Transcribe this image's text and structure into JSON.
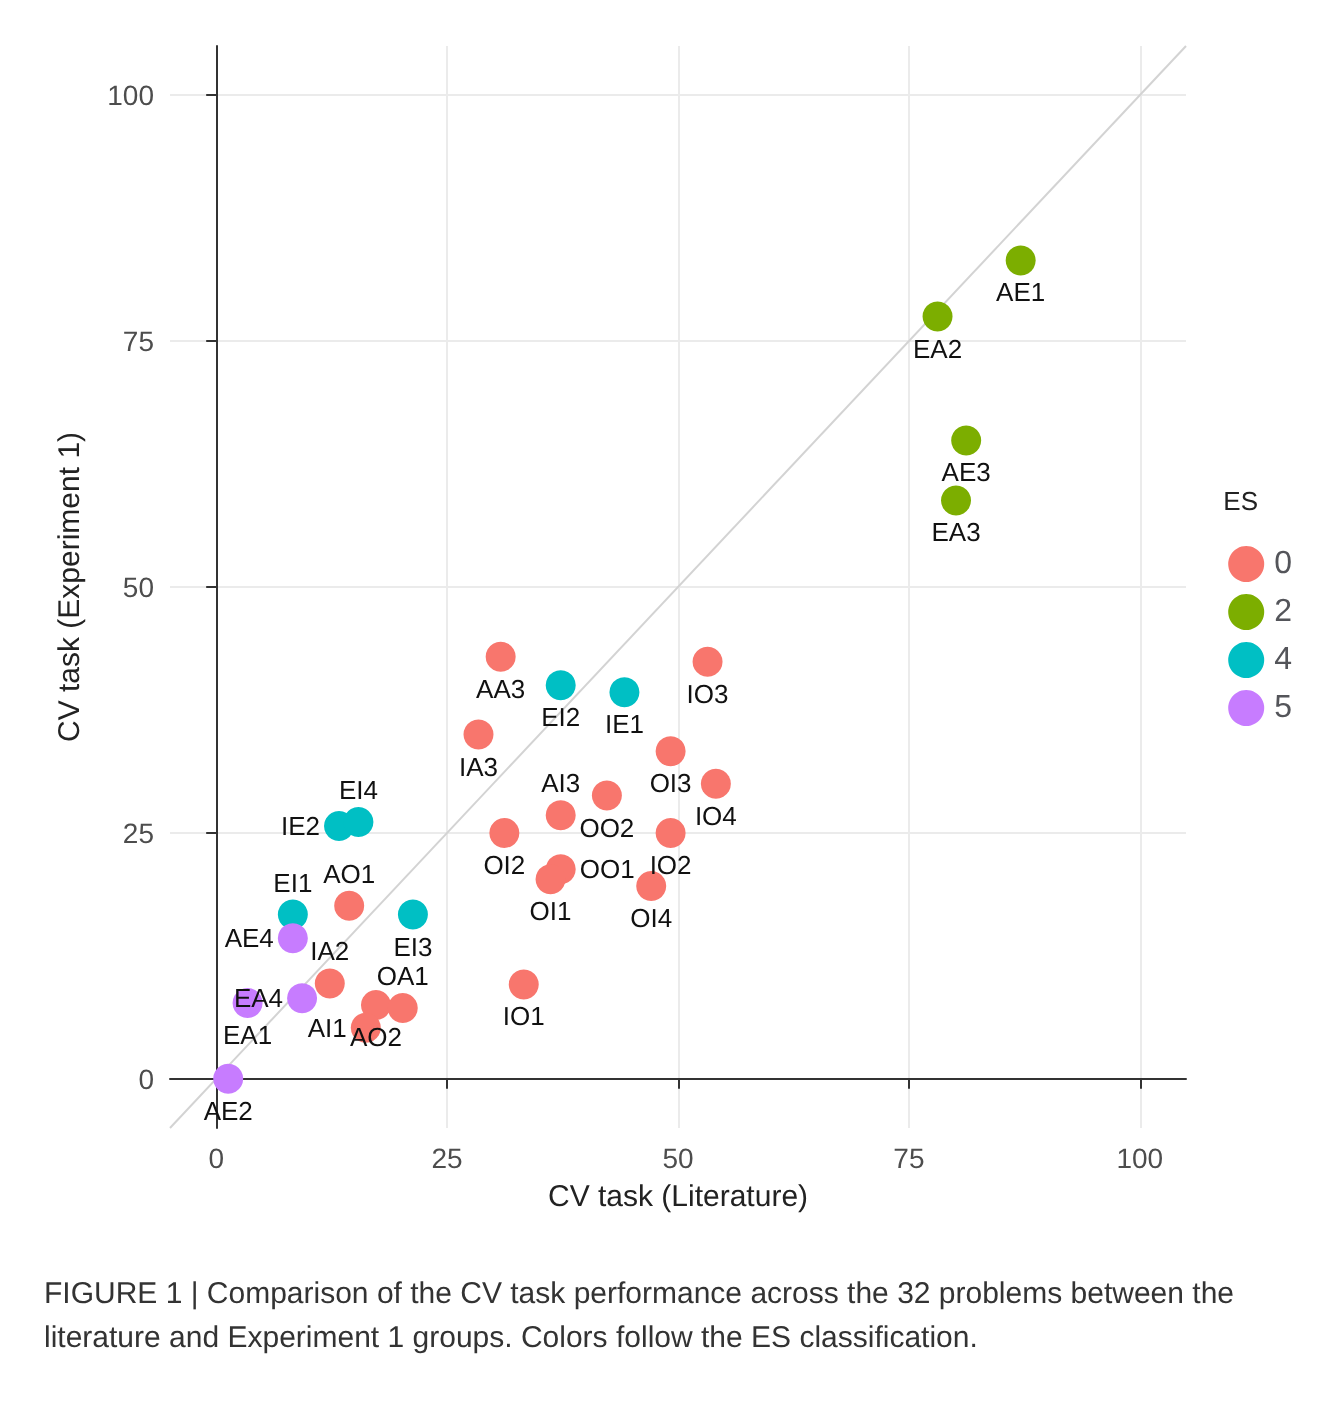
{
  "chart_data": {
    "type": "scatter",
    "xlabel": "CV task (Literature)",
    "ylabel": "CV task (Experiment 1)",
    "legend_title": "ES",
    "legend": "right",
    "grid": true,
    "marker": "circle",
    "xlim": [
      -5,
      105
    ],
    "ylim": [
      -5,
      105
    ],
    "xticks": [
      0,
      25,
      50,
      75,
      100
    ],
    "yticks": [
      0,
      25,
      50,
      75,
      100
    ],
    "series": [
      {
        "name": "0",
        "color": "#f8766d",
        "x": [
          12.3,
          17.3,
          20.2,
          16.2,
          14.4,
          28.4,
          30.8,
          31.2,
          42.3,
          49.2,
          53.2,
          54.1,
          37.3,
          49.2,
          37.3,
          36.2,
          47.1,
          33.3
        ],
        "values": [
          9.7,
          7.5,
          7.2,
          5.2,
          17.6,
          35,
          42.9,
          25,
          28.8,
          33.3,
          42.4,
          30,
          26.8,
          25,
          21.3,
          20.3,
          19.6,
          9.6
        ],
        "value_labels": [
          "IA2",
          "AO2",
          "OA1",
          "AI1",
          "AO1",
          "IA3",
          "AA3",
          "OI2",
          "OO2",
          "OI3",
          "IO3",
          "IO4",
          "AI3",
          "IO2",
          "OO1",
          "OI1",
          "OI4",
          "IO1"
        ]
      },
      {
        "name": "2",
        "color": "#7cae00",
        "x": [
          87.1,
          78.1,
          81.2,
          80.1
        ],
        "values": [
          83.2,
          77.5,
          64.9,
          58.8
        ],
        "value_labels": [
          "AE1",
          "EA2",
          "AE3",
          "EA3"
        ]
      },
      {
        "name": "4",
        "color": "#00bfc4",
        "x": [
          13.3,
          15.4,
          8.3,
          21.3,
          37.3,
          44.2
        ],
        "values": [
          25.7,
          26.1,
          16.7,
          16.7,
          40,
          39.3
        ],
        "value_labels": [
          "IE2",
          "EI4",
          "EI1",
          "EI3",
          "EI2",
          "IE1"
        ]
      },
      {
        "name": "5",
        "color": "#c77cff",
        "x": [
          1.3,
          3.4,
          9.3,
          8.3
        ],
        "values": [
          0,
          7.7,
          8.2,
          14.3
        ],
        "value_labels": [
          "AE2",
          "EA1",
          "EA4",
          "AE4"
        ]
      },
      {
        "type": "line",
        "color": "#d3d3d3",
        "x": [
          -5,
          105
        ],
        "values": [
          -5,
          105
        ],
        "marker": "none"
      }
    ],
    "annotations": [
      "FIGURE 1 | Comparison of the CV task performance across the 32 problems between the literature and Experiment 1 groups. Colors follow the ES classification."
    ]
  }
}
